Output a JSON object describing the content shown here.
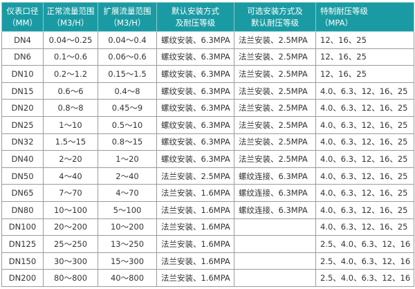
{
  "colors": {
    "header_bg": "#1a9ba3",
    "header_text": "#ffffff"
  },
  "headers": [
    [
      "仪表口径",
      "（MM）"
    ],
    [
      "正常流量范围",
      "（M3/H）"
    ],
    [
      "扩展流量范围",
      "（M3/H）"
    ],
    [
      "默认安装方式",
      "及耐压等级"
    ],
    [
      "可选安装方式及",
      "默认耐压等级"
    ],
    [
      "特制耐压等级",
      "（MPA）"
    ]
  ],
  "rows": [
    [
      "DN4",
      "0.04～0.25",
      "0.04～0.4",
      "螺纹安装、6.3MPA",
      "法兰安装、2.5MPA",
      "12、16、25"
    ],
    [
      "DN6",
      "0.1～0.6",
      "0.06～0.6",
      "螺纹安装、6.3MPA",
      "法兰安装、2.5MPA",
      "12、16、25"
    ],
    [
      "DN10",
      "0.2～1.2",
      "0.15～1.5",
      "螺纹安装、6.3MPA",
      "法兰安装、2.5MPA",
      "12、16、25"
    ],
    [
      "DN15",
      "0.6～6",
      "0.4～8",
      "螺纹安装、6.3MPA",
      "法兰安装、2.5MPA",
      "4.0、6.3、12、16、25"
    ],
    [
      "DN20",
      "0.8～8",
      "0.45～9",
      "螺纹安装、6.3MPA",
      "法兰安装、2.5MPA",
      "4.0、6.3、12、16、25"
    ],
    [
      "DN25",
      "1～10",
      "0.5～10",
      "螺纹安装、6.3MPA",
      "法兰安装、2.5MPA",
      "4.0、6.3、12、16、25"
    ],
    [
      "DN32",
      "1.5～15",
      "0.8～15",
      "螺纹安装、6.3MPA",
      "法兰安装、2.5MPA",
      "4.0、6.3、12、16、25"
    ],
    [
      "DN40",
      "2～20",
      "1～20",
      "螺纹安装、6.3MPA",
      "法兰安装、2.5MPA",
      "4.0、6.3、12、16、25"
    ],
    [
      "DN50",
      "4～40",
      "2～40",
      "法兰安装、2.5MPA",
      "螺纹连接、6.3MPA",
      "4.0、6.3、12、16、25"
    ],
    [
      "DN65",
      "7～70",
      "4～70",
      "法兰安装、1.6MPA",
      "螺纹连接、6.3MPA",
      "4.0、6.3、12、16、25"
    ],
    [
      "DN80",
      "10～100",
      "5～100",
      "法兰安装、1.6MPA",
      "螺纹连接、6.3MPA",
      "4.0、6.3、12、16、25"
    ],
    [
      "DN100",
      "20～200",
      "10～200",
      "法兰安装、1.6MPA",
      "",
      "4.0、6.3、12、16、25"
    ],
    [
      "DN125",
      "25～250",
      "13～250",
      "法兰安装、1.6MPA",
      "",
      "2.5、4.0、6.3、12、16"
    ],
    [
      "DN150",
      "30～300",
      "15～300",
      "法兰安装、1.6MPA",
      "",
      "2.5、4.0、6.3、12、16"
    ],
    [
      "DN200",
      "80～800",
      "40～800",
      "法兰安装、1.6MPA",
      "",
      "2.5、4.0、6.3、12、16"
    ]
  ]
}
